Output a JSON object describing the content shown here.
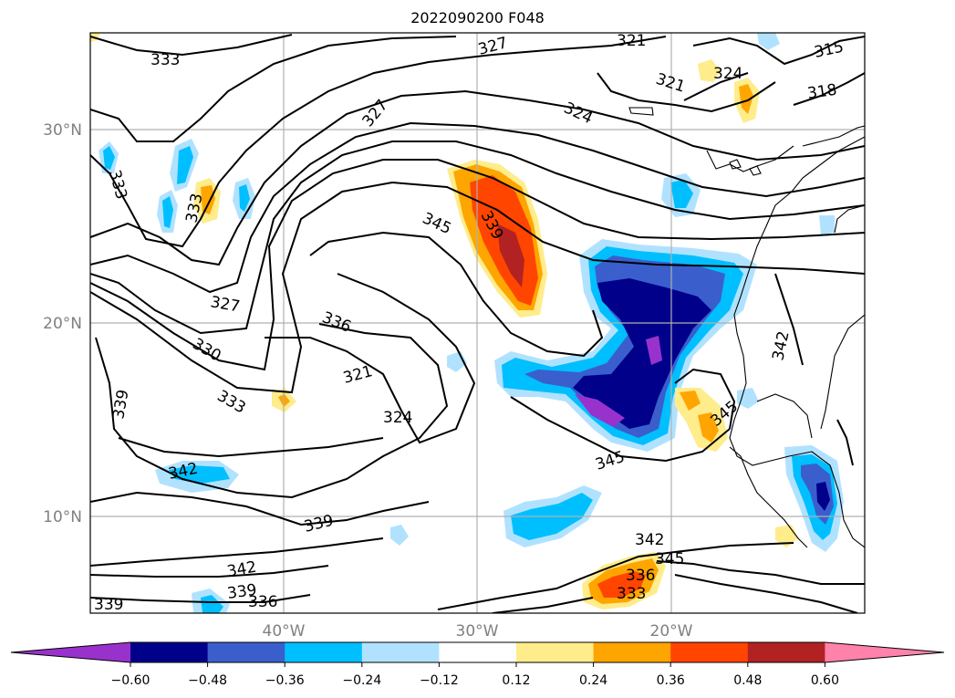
{
  "title": "2022090200 F048",
  "map": {
    "lon_range": [
      -50,
      10
    ],
    "lat_range": [
      5,
      35
    ],
    "lon_ticks": [
      {
        "value": -40,
        "label": "40°W"
      },
      {
        "value": -30,
        "label": "30°W"
      },
      {
        "value": -20,
        "label": "20°W"
      }
    ],
    "lat_ticks": [
      {
        "value": 30,
        "label": "30°N"
      },
      {
        "value": 20,
        "label": "20°N"
      },
      {
        "value": 10,
        "label": "10°N"
      }
    ],
    "gridlines": true,
    "contour_labels": [
      "333",
      "327",
      "321",
      "315",
      "324",
      "321",
      "318",
      "327",
      "324",
      "333",
      "333",
      "345",
      "339",
      "327",
      "336",
      "330",
      "321",
      "324",
      "333",
      "339",
      "342",
      "339",
      "342",
      "339",
      "336",
      "336",
      "333",
      "339",
      "342",
      "345",
      "345",
      "342",
      "345"
    ]
  },
  "colorbar": {
    "ticks": [
      "−0.60",
      "−0.48",
      "−0.36",
      "−0.24",
      "−0.12",
      "0.12",
      "0.24",
      "0.36",
      "0.48",
      "0.60"
    ],
    "colors": [
      "#9932cc",
      "#00008b",
      "#3a5fcd",
      "#00bfff",
      "#b0e2ff",
      "#ffffff",
      "#ffec8b",
      "#ffa500",
      "#ff4500",
      "#b22222",
      "#ff82ab"
    ]
  }
}
